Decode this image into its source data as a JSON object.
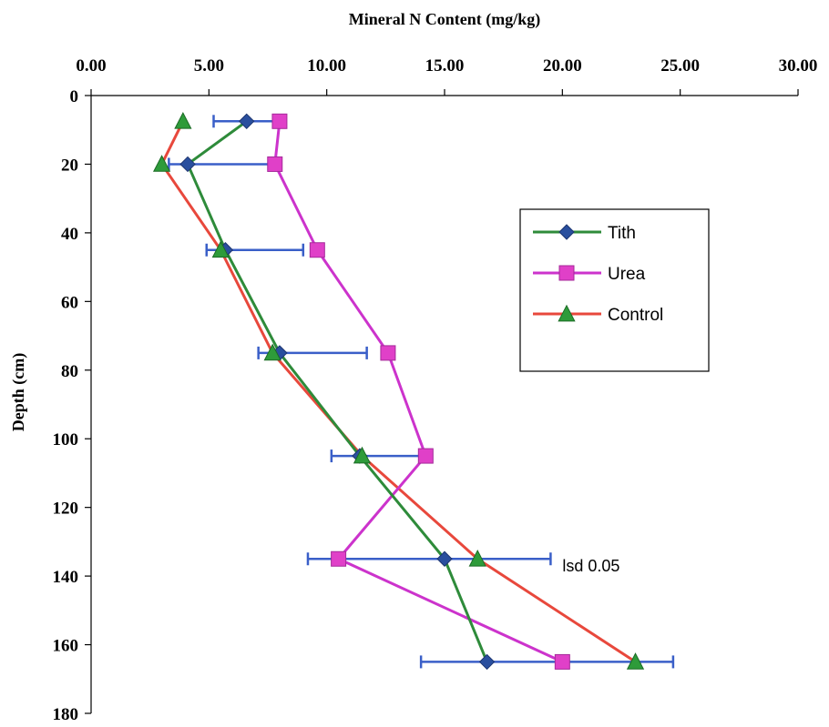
{
  "chart_data": {
    "type": "line",
    "title": "Mineral N Content (mg/kg)",
    "xlabel": "Mineral N Content (mg/kg)",
    "ylabel": "Depth (cm)",
    "xlim": [
      0,
      30
    ],
    "ylim": [
      0,
      180
    ],
    "y_inverted": true,
    "x_axis_position": "top",
    "x_ticks": [
      "0.00",
      "5.00",
      "10.00",
      "15.00",
      "20.00",
      "25.00",
      "30.00"
    ],
    "y_ticks": [
      "0",
      "20",
      "40",
      "60",
      "80",
      "100",
      "120",
      "140",
      "160",
      "180"
    ],
    "grid": false,
    "legend_position": "right",
    "series": [
      {
        "name": "Tith",
        "color": "#2e8b3a",
        "marker_color": "#2a4f9e",
        "marker": "diamond",
        "x": [
          6.6,
          4.1,
          5.7,
          8.0,
          11.4,
          15.0,
          16.8
        ],
        "y": [
          7.5,
          20,
          45,
          75,
          105,
          135,
          165
        ]
      },
      {
        "name": "Urea",
        "color": "#cc33cc",
        "marker_color": "#e040c8",
        "marker": "square",
        "x": [
          8.0,
          7.8,
          9.6,
          12.6,
          14.2,
          10.5,
          20.0
        ],
        "y": [
          7.5,
          20,
          45,
          75,
          105,
          135,
          165
        ]
      },
      {
        "name": "Control",
        "color": "#e8483c",
        "marker_color": "#2e9b3a",
        "marker": "triangle",
        "x": [
          3.9,
          3.0,
          5.5,
          7.7,
          11.5,
          16.4,
          23.1
        ],
        "y": [
          7.5,
          20,
          45,
          75,
          105,
          135,
          165
        ]
      }
    ],
    "error_bars": {
      "color": "#3a5fc8",
      "series": "Tith",
      "bars": [
        {
          "y": 7.5,
          "x_low": 5.2,
          "x_high": 8.0
        },
        {
          "y": 20,
          "x_low": 3.3,
          "x_high": 7.8
        },
        {
          "y": 45,
          "x_low": 4.9,
          "x_high": 9.0
        },
        {
          "y": 75,
          "x_low": 7.1,
          "x_high": 11.7
        },
        {
          "y": 105,
          "x_low": 10.2,
          "x_high": 14.2
        },
        {
          "y": 135,
          "x_low": 9.2,
          "x_high": 19.5
        },
        {
          "y": 165,
          "x_low": 14.0,
          "x_high": 24.7
        }
      ]
    },
    "annotations": [
      {
        "text": "lsd 0.05",
        "x": 20.0,
        "y": 137
      }
    ]
  }
}
